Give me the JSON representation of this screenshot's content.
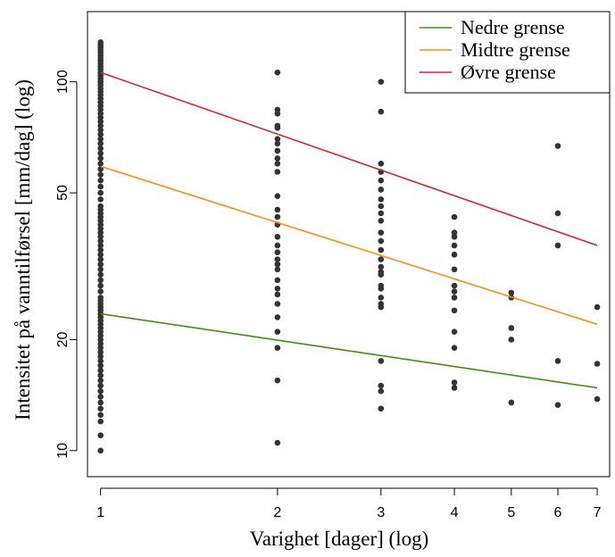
{
  "chart_data": {
    "type": "scatter",
    "title": "",
    "xlabel": "Varighet [dager] (log)",
    "ylabel": "Intensitet på vanntilførsel [mm/dag] (log)",
    "x_scale": "log",
    "y_scale": "log",
    "xlim": [
      0.95,
      7.35
    ],
    "ylim": [
      8.5,
      155
    ],
    "x_ticks": [
      1,
      2,
      3,
      4,
      5,
      6,
      7
    ],
    "y_ticks": [
      10,
      20,
      50,
      100
    ],
    "grid": false,
    "legend_position": "top-right",
    "lines": [
      {
        "name": "Nedre grense",
        "color": "#3f8f17",
        "points": [
          [
            1,
            23.5
          ],
          [
            7,
            14.8
          ]
        ]
      },
      {
        "name": "Midtre grense",
        "color": "#ff8c1a",
        "points": [
          [
            1,
            59
          ],
          [
            7,
            22
          ]
        ]
      },
      {
        "name": "Øvre grense",
        "color": "#cc2b36",
        "points": [
          [
            1,
            106
          ],
          [
            7,
            36
          ]
        ]
      }
    ],
    "points_color": "#333333",
    "points": [
      [
        1,
        10
      ],
      [
        1,
        11
      ],
      [
        1,
        12
      ],
      [
        1,
        12.5
      ],
      [
        1,
        13
      ],
      [
        1,
        13.5
      ],
      [
        1,
        14
      ],
      [
        1,
        14.5
      ],
      [
        1,
        15
      ],
      [
        1,
        15.5
      ],
      [
        1,
        16
      ],
      [
        1,
        16.5
      ],
      [
        1,
        17
      ],
      [
        1,
        17.5
      ],
      [
        1,
        18
      ],
      [
        1,
        18.5
      ],
      [
        1,
        19
      ],
      [
        1,
        19.5
      ],
      [
        1,
        20
      ],
      [
        1,
        20.5
      ],
      [
        1,
        21
      ],
      [
        1,
        21.5
      ],
      [
        1,
        22
      ],
      [
        1,
        22.5
      ],
      [
        1,
        23
      ],
      [
        1,
        23.5
      ],
      [
        1,
        24
      ],
      [
        1,
        24.5
      ],
      [
        1,
        25
      ],
      [
        1,
        25.5
      ],
      [
        1,
        26
      ],
      [
        1,
        27
      ],
      [
        1,
        28
      ],
      [
        1,
        29
      ],
      [
        1,
        30
      ],
      [
        1,
        31
      ],
      [
        1,
        32
      ],
      [
        1,
        33
      ],
      [
        1,
        34
      ],
      [
        1,
        35
      ],
      [
        1,
        36
      ],
      [
        1,
        37
      ],
      [
        1,
        38
      ],
      [
        1,
        39
      ],
      [
        1,
        40
      ],
      [
        1,
        41
      ],
      [
        1,
        42
      ],
      [
        1,
        43
      ],
      [
        1,
        44
      ],
      [
        1,
        45
      ],
      [
        1,
        46
      ],
      [
        1,
        48
      ],
      [
        1,
        50
      ],
      [
        1,
        52
      ],
      [
        1,
        54
      ],
      [
        1,
        56
      ],
      [
        1,
        58
      ],
      [
        1,
        60
      ],
      [
        1,
        62
      ],
      [
        1,
        64
      ],
      [
        1,
        66
      ],
      [
        1,
        68
      ],
      [
        1,
        70
      ],
      [
        1,
        72
      ],
      [
        1,
        74
      ],
      [
        1,
        76
      ],
      [
        1,
        78
      ],
      [
        1,
        80
      ],
      [
        1,
        82
      ],
      [
        1,
        84
      ],
      [
        1,
        86
      ],
      [
        1,
        88
      ],
      [
        1,
        90
      ],
      [
        1,
        92
      ],
      [
        1,
        94
      ],
      [
        1,
        96
      ],
      [
        1,
        98
      ],
      [
        1,
        100
      ],
      [
        1,
        102
      ],
      [
        1,
        104
      ],
      [
        1,
        106
      ],
      [
        1,
        108
      ],
      [
        1,
        110
      ],
      [
        1,
        112
      ],
      [
        1,
        114
      ],
      [
        1,
        116
      ],
      [
        1,
        118
      ],
      [
        1,
        120
      ],
      [
        1,
        122
      ],
      [
        1,
        124
      ],
      [
        1,
        126
      ],
      [
        1,
        128
      ],
      [
        2,
        10.5
      ],
      [
        2,
        15.5
      ],
      [
        2,
        19
      ],
      [
        2,
        21
      ],
      [
        2,
        23
      ],
      [
        2,
        25
      ],
      [
        2,
        26.5
      ],
      [
        2,
        27.5
      ],
      [
        2,
        29
      ],
      [
        2,
        31
      ],
      [
        2,
        32
      ],
      [
        2,
        33
      ],
      [
        2,
        34.5
      ],
      [
        2,
        36
      ],
      [
        2,
        38
      ],
      [
        2,
        41
      ],
      [
        2,
        43
      ],
      [
        2,
        45
      ],
      [
        2,
        49
      ],
      [
        2,
        57
      ],
      [
        2,
        60
      ],
      [
        2,
        62
      ],
      [
        2,
        65
      ],
      [
        2,
        68
      ],
      [
        2,
        70
      ],
      [
        2,
        75
      ],
      [
        2,
        76
      ],
      [
        2,
        82
      ],
      [
        2,
        84
      ],
      [
        2,
        106
      ],
      [
        3,
        13
      ],
      [
        3,
        14.5
      ],
      [
        3,
        15
      ],
      [
        3,
        17.5
      ],
      [
        3,
        24.5
      ],
      [
        3,
        25
      ],
      [
        3,
        26
      ],
      [
        3,
        27.5
      ],
      [
        3,
        28
      ],
      [
        3,
        30
      ],
      [
        3,
        30.5
      ],
      [
        3,
        31.5
      ],
      [
        3,
        33
      ],
      [
        3,
        35
      ],
      [
        3,
        37
      ],
      [
        3,
        39
      ],
      [
        3,
        42
      ],
      [
        3,
        44
      ],
      [
        3,
        46
      ],
      [
        3,
        48
      ],
      [
        3,
        51
      ],
      [
        3,
        54
      ],
      [
        3,
        57
      ],
      [
        3,
        60
      ],
      [
        3,
        83
      ],
      [
        3,
        100
      ],
      [
        4,
        14.8
      ],
      [
        4,
        15.3
      ],
      [
        4,
        19
      ],
      [
        4,
        21
      ],
      [
        4,
        24
      ],
      [
        4,
        26
      ],
      [
        4,
        27
      ],
      [
        4,
        28
      ],
      [
        4,
        31
      ],
      [
        4,
        34
      ],
      [
        4,
        36
      ],
      [
        4,
        38
      ],
      [
        4,
        39
      ],
      [
        4,
        43
      ],
      [
        5,
        13.5
      ],
      [
        5,
        20
      ],
      [
        5,
        21.5
      ],
      [
        5,
        26
      ],
      [
        5,
        26.8
      ],
      [
        6,
        13.3
      ],
      [
        6,
        17.5
      ],
      [
        6,
        36
      ],
      [
        6,
        44
      ],
      [
        6,
        67
      ],
      [
        7,
        13.8
      ],
      [
        7,
        17.2
      ],
      [
        7,
        24.5
      ]
    ]
  }
}
